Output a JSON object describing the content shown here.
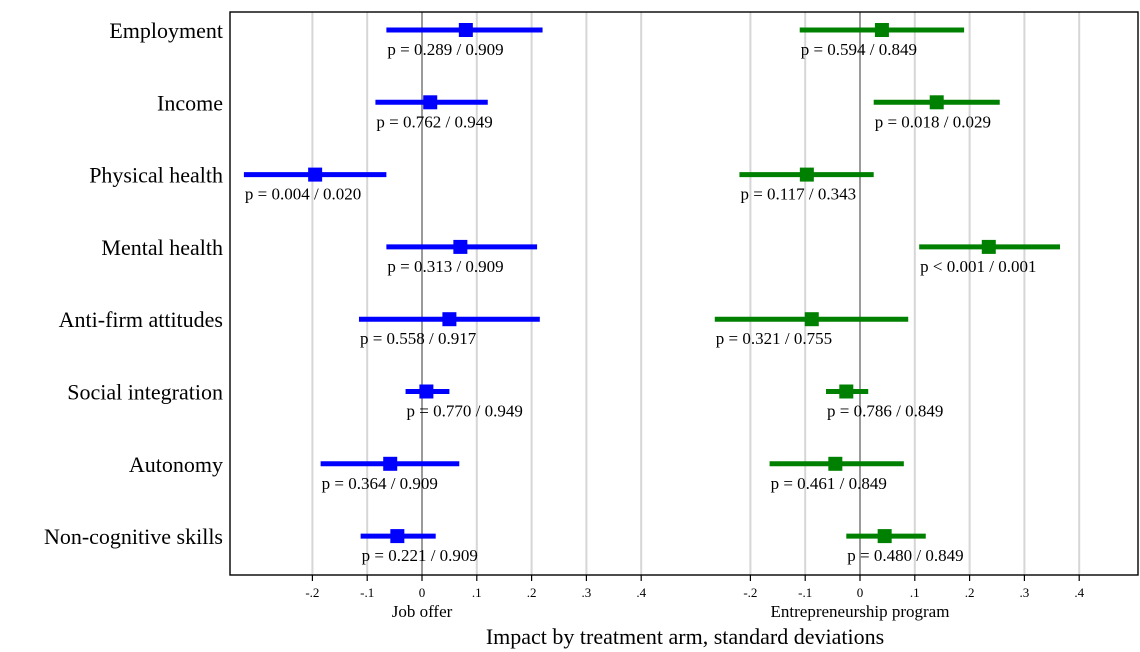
{
  "chart_data": {
    "type": "coefficient-plot",
    "xlabel": "Impact by treatment arm, standard deviations",
    "categories": [
      "Employment",
      "Income",
      "Physical health",
      "Mental health",
      "Anti-firm attitudes",
      "Social integration",
      "Autonomy",
      "Non-cognitive skills"
    ],
    "x_ticks": [
      "-.2",
      "-.1",
      "0",
      ".1",
      ".2",
      ".3",
      ".4"
    ],
    "x_tick_values": [
      -0.2,
      -0.1,
      0,
      0.1,
      0.2,
      0.3,
      0.4
    ],
    "xlim": [
      -0.34,
      0.43
    ],
    "grid": true,
    "panels": [
      {
        "label": "Job offer",
        "color": "#0000ff",
        "estimates": [
          {
            "category": "Employment",
            "estimate": 0.08,
            "ci": [
              -0.065,
              0.22
            ],
            "p_label": "p = 0.289 / 0.909"
          },
          {
            "category": "Income",
            "estimate": 0.015,
            "ci": [
              -0.085,
              0.12
            ],
            "p_label": "p = 0.762 / 0.949"
          },
          {
            "category": "Physical health",
            "estimate": -0.195,
            "ci": [
              -0.325,
              -0.065
            ],
            "p_label": "p = 0.004 / 0.020"
          },
          {
            "category": "Mental health",
            "estimate": 0.07,
            "ci": [
              -0.065,
              0.21
            ],
            "p_label": "p = 0.313 / 0.909"
          },
          {
            "category": "Anti-firm attitudes",
            "estimate": 0.05,
            "ci": [
              -0.115,
              0.215
            ],
            "p_label": "p = 0.558 / 0.917"
          },
          {
            "category": "Social integration",
            "estimate": 0.008,
            "ci": [
              -0.03,
              0.05
            ],
            "p_label": "p = 0.770 / 0.949"
          },
          {
            "category": "Autonomy",
            "estimate": -0.058,
            "ci": [
              -0.185,
              0.068
            ],
            "p_label": "p = 0.364 / 0.909"
          },
          {
            "category": "Non-cognitive skills",
            "estimate": -0.045,
            "ci": [
              -0.112,
              0.025
            ],
            "p_label": "p = 0.221 / 0.909"
          }
        ]
      },
      {
        "label": "Entrepreneurship program",
        "color": "#008000",
        "estimates": [
          {
            "category": "Employment",
            "estimate": 0.04,
            "ci": [
              -0.11,
              0.19
            ],
            "p_label": "p = 0.594 / 0.849"
          },
          {
            "category": "Income",
            "estimate": 0.14,
            "ci": [
              0.025,
              0.255
            ],
            "p_label": "p = 0.018 / 0.029"
          },
          {
            "category": "Physical health",
            "estimate": -0.097,
            "ci": [
              -0.22,
              0.025
            ],
            "p_label": "p = 0.117 / 0.343"
          },
          {
            "category": "Mental health",
            "estimate": 0.235,
            "ci": [
              0.108,
              0.365
            ],
            "p_label": "p < 0.001 / 0.001"
          },
          {
            "category": "Anti-firm attitudes",
            "estimate": -0.088,
            "ci": [
              -0.265,
              0.088
            ],
            "p_label": "p = 0.321 / 0.755"
          },
          {
            "category": "Social integration",
            "estimate": -0.025,
            "ci": [
              -0.062,
              0.015
            ],
            "p_label": "p = 0.786 / 0.849"
          },
          {
            "category": "Autonomy",
            "estimate": -0.045,
            "ci": [
              -0.165,
              0.08
            ],
            "p_label": "p = 0.461 / 0.849"
          },
          {
            "category": "Non-cognitive skills",
            "estimate": 0.045,
            "ci": [
              -0.025,
              0.12
            ],
            "p_label": "p = 0.480 / 0.849"
          }
        ]
      }
    ]
  }
}
